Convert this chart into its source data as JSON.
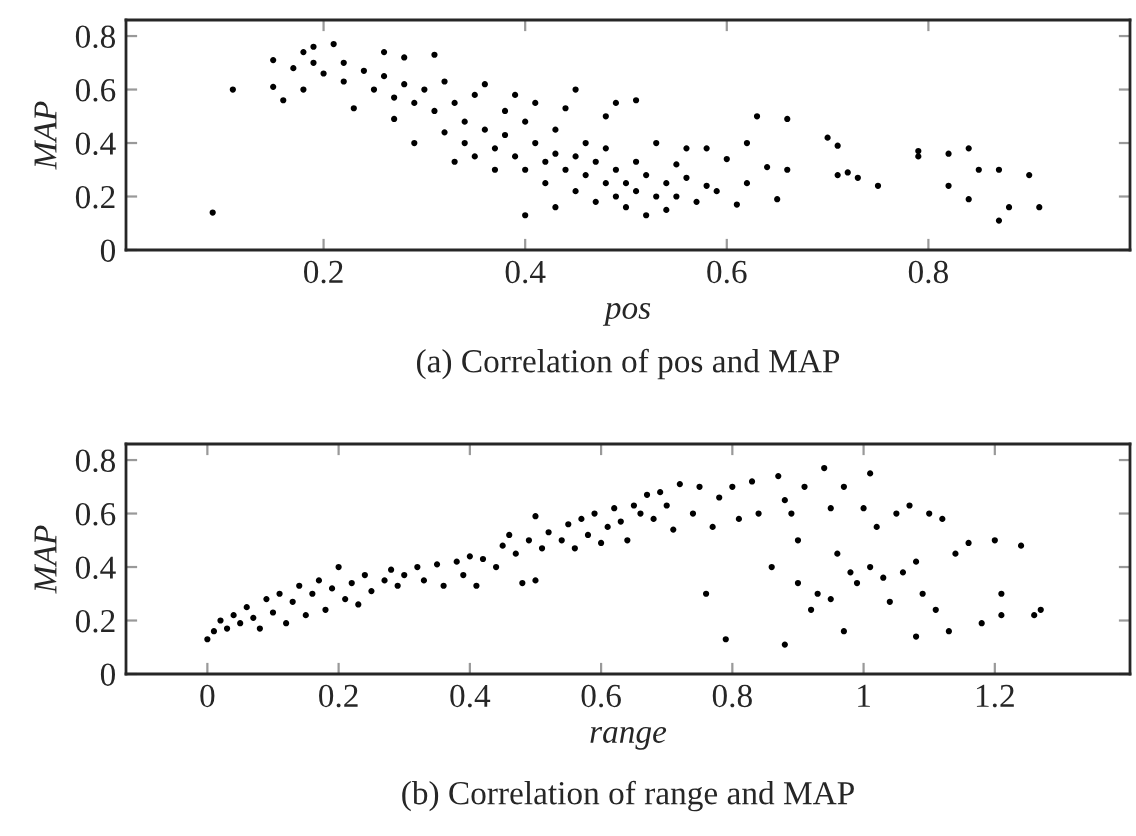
{
  "chart_data": [
    {
      "type": "scatter",
      "xlabel": "pos",
      "ylabel": "MAP",
      "annotations": [
        "(a) Correlation of pos and MAP"
      ],
      "xlim": [
        0.004,
        1.0
      ],
      "ylim": [
        0,
        0.86
      ],
      "xticks": [
        0.2,
        0.4,
        0.6,
        0.8
      ],
      "yticks": [
        0,
        0.2,
        0.4,
        0.6,
        0.8
      ],
      "grid": false,
      "marker": "circle",
      "series": [
        {
          "color": "#000000",
          "x": [
            0.09,
            0.11,
            0.15,
            0.15,
            0.16,
            0.17,
            0.18,
            0.18,
            0.19,
            0.19,
            0.2,
            0.21,
            0.22,
            0.22,
            0.23,
            0.24,
            0.25,
            0.26,
            0.26,
            0.27,
            0.27,
            0.28,
            0.28,
            0.29,
            0.29,
            0.3,
            0.31,
            0.31,
            0.32,
            0.32,
            0.33,
            0.33,
            0.34,
            0.34,
            0.35,
            0.35,
            0.36,
            0.36,
            0.37,
            0.37,
            0.38,
            0.38,
            0.39,
            0.39,
            0.4,
            0.4,
            0.4,
            0.41,
            0.41,
            0.42,
            0.42,
            0.43,
            0.43,
            0.43,
            0.44,
            0.44,
            0.45,
            0.45,
            0.45,
            0.46,
            0.46,
            0.47,
            0.47,
            0.48,
            0.48,
            0.48,
            0.49,
            0.49,
            0.49,
            0.5,
            0.5,
            0.51,
            0.51,
            0.51,
            0.52,
            0.52,
            0.53,
            0.53,
            0.54,
            0.54,
            0.55,
            0.55,
            0.56,
            0.56,
            0.57,
            0.58,
            0.58,
            0.59,
            0.6,
            0.61,
            0.62,
            0.62,
            0.63,
            0.64,
            0.65,
            0.66,
            0.66,
            0.7,
            0.71,
            0.71,
            0.72,
            0.73,
            0.75,
            0.79,
            0.79,
            0.82,
            0.82,
            0.84,
            0.84,
            0.85,
            0.87,
            0.87,
            0.88,
            0.9,
            0.91
          ],
          "values": [
            0.14,
            0.6,
            0.71,
            0.61,
            0.56,
            0.68,
            0.74,
            0.6,
            0.7,
            0.76,
            0.66,
            0.77,
            0.7,
            0.63,
            0.53,
            0.67,
            0.6,
            0.74,
            0.65,
            0.57,
            0.49,
            0.72,
            0.62,
            0.55,
            0.4,
            0.6,
            0.52,
            0.73,
            0.44,
            0.63,
            0.55,
            0.33,
            0.48,
            0.4,
            0.58,
            0.35,
            0.45,
            0.62,
            0.38,
            0.3,
            0.52,
            0.43,
            0.58,
            0.35,
            0.48,
            0.13,
            0.3,
            0.4,
            0.55,
            0.33,
            0.25,
            0.45,
            0.36,
            0.16,
            0.3,
            0.53,
            0.35,
            0.6,
            0.22,
            0.28,
            0.4,
            0.33,
            0.18,
            0.25,
            0.38,
            0.5,
            0.2,
            0.3,
            0.55,
            0.25,
            0.16,
            0.33,
            0.22,
            0.56,
            0.13,
            0.28,
            0.2,
            0.4,
            0.25,
            0.15,
            0.32,
            0.2,
            0.27,
            0.38,
            0.18,
            0.24,
            0.38,
            0.22,
            0.34,
            0.17,
            0.4,
            0.25,
            0.5,
            0.31,
            0.19,
            0.49,
            0.3,
            0.42,
            0.28,
            0.39,
            0.29,
            0.27,
            0.24,
            0.37,
            0.35,
            0.36,
            0.24,
            0.38,
            0.19,
            0.3,
            0.3,
            0.11,
            0.16,
            0.28,
            0.16
          ]
        }
      ]
    },
    {
      "type": "scatter",
      "xlabel": "range",
      "ylabel": "MAP",
      "annotations": [
        "(b) Correlation of range and MAP"
      ],
      "xlim": [
        -0.124,
        1.406
      ],
      "ylim": [
        0,
        0.86
      ],
      "xticks": [
        0,
        0.2,
        0.4,
        0.6,
        0.8,
        1,
        1.2
      ],
      "yticks": [
        0,
        0.2,
        0.4,
        0.6,
        0.8
      ],
      "grid": false,
      "marker": "circle",
      "series": [
        {
          "color": "#000000",
          "x": [
            0.0,
            0.01,
            0.02,
            0.03,
            0.04,
            0.05,
            0.06,
            0.07,
            0.08,
            0.09,
            0.1,
            0.11,
            0.12,
            0.13,
            0.14,
            0.15,
            0.16,
            0.17,
            0.18,
            0.19,
            0.2,
            0.21,
            0.22,
            0.23,
            0.24,
            0.25,
            0.27,
            0.28,
            0.29,
            0.3,
            0.32,
            0.33,
            0.35,
            0.36,
            0.38,
            0.39,
            0.4,
            0.41,
            0.42,
            0.44,
            0.45,
            0.46,
            0.47,
            0.48,
            0.49,
            0.5,
            0.5,
            0.51,
            0.52,
            0.54,
            0.55,
            0.56,
            0.57,
            0.58,
            0.59,
            0.6,
            0.61,
            0.62,
            0.63,
            0.64,
            0.65,
            0.66,
            0.67,
            0.68,
            0.69,
            0.7,
            0.71,
            0.72,
            0.74,
            0.75,
            0.76,
            0.77,
            0.78,
            0.79,
            0.8,
            0.81,
            0.83,
            0.84,
            0.86,
            0.87,
            0.88,
            0.88,
            0.89,
            0.9,
            0.9,
            0.91,
            0.92,
            0.93,
            0.94,
            0.95,
            0.95,
            0.96,
            0.97,
            0.97,
            0.98,
            0.99,
            1.0,
            1.01,
            1.01,
            1.02,
            1.03,
            1.04,
            1.05,
            1.06,
            1.07,
            1.08,
            1.08,
            1.09,
            1.1,
            1.11,
            1.12,
            1.13,
            1.14,
            1.16,
            1.18,
            1.2,
            1.21,
            1.21,
            1.24,
            1.26,
            1.27
          ],
          "values": [
            0.13,
            0.16,
            0.2,
            0.17,
            0.22,
            0.19,
            0.25,
            0.21,
            0.17,
            0.28,
            0.23,
            0.3,
            0.19,
            0.27,
            0.33,
            0.22,
            0.3,
            0.35,
            0.24,
            0.32,
            0.4,
            0.28,
            0.34,
            0.26,
            0.37,
            0.31,
            0.35,
            0.39,
            0.33,
            0.37,
            0.4,
            0.35,
            0.41,
            0.33,
            0.42,
            0.37,
            0.44,
            0.33,
            0.43,
            0.4,
            0.48,
            0.52,
            0.45,
            0.34,
            0.5,
            0.59,
            0.35,
            0.47,
            0.53,
            0.5,
            0.56,
            0.47,
            0.58,
            0.52,
            0.6,
            0.49,
            0.55,
            0.62,
            0.57,
            0.5,
            0.63,
            0.6,
            0.67,
            0.58,
            0.68,
            0.63,
            0.54,
            0.71,
            0.6,
            0.7,
            0.3,
            0.55,
            0.66,
            0.13,
            0.7,
            0.58,
            0.72,
            0.6,
            0.4,
            0.74,
            0.11,
            0.65,
            0.6,
            0.5,
            0.34,
            0.7,
            0.24,
            0.3,
            0.77,
            0.62,
            0.28,
            0.45,
            0.16,
            0.7,
            0.38,
            0.34,
            0.62,
            0.75,
            0.4,
            0.55,
            0.36,
            0.27,
            0.6,
            0.38,
            0.63,
            0.14,
            0.42,
            0.3,
            0.6,
            0.24,
            0.58,
            0.16,
            0.45,
            0.49,
            0.19,
            0.5,
            0.3,
            0.22,
            0.48,
            0.22,
            0.24
          ]
        }
      ]
    }
  ]
}
